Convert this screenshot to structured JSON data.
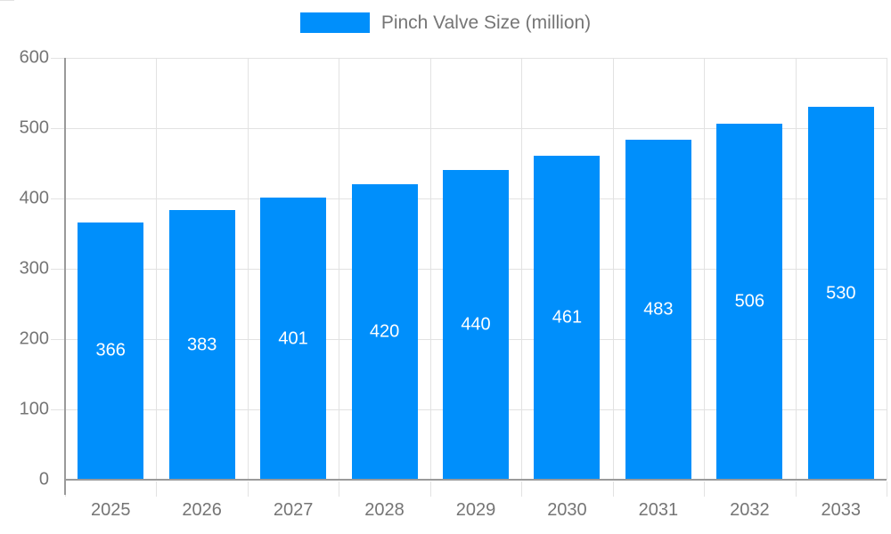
{
  "legend": {
    "series_label": "Pinch Valve Size (million)"
  },
  "chart_data": {
    "type": "bar",
    "title": "",
    "xlabel": "",
    "ylabel": "",
    "categories": [
      "2025",
      "2026",
      "2027",
      "2028",
      "2029",
      "2030",
      "2031",
      "2032",
      "2033"
    ],
    "series": [
      {
        "name": "Pinch Valve Size (million)",
        "values": [
          366,
          383,
          401,
          420,
          440,
          461,
          483,
          506,
          530
        ]
      }
    ],
    "ylim": [
      0,
      600
    ],
    "yticks": [
      0,
      100,
      200,
      300,
      400,
      500,
      600
    ],
    "grid": "on",
    "legend_position": "top",
    "value_labels": "centered-in-bar",
    "colors": {
      "bar": "#008FFB",
      "value_label": "#ffffff",
      "axis_text": "#757575",
      "legend_text": "#757575",
      "gridline": "#e2e2e2",
      "axis_line": "#9a9a9a"
    }
  }
}
